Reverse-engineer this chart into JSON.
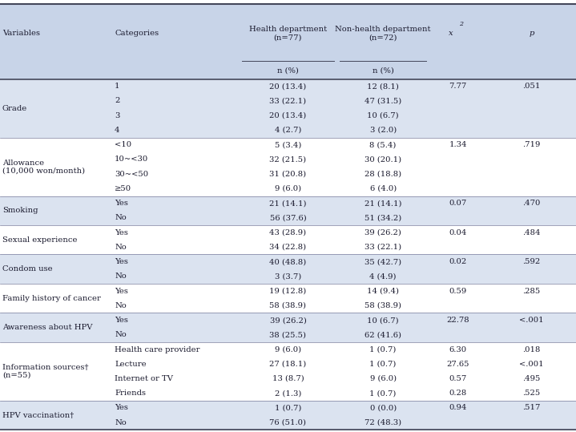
{
  "header_bg": "#c8d4e8",
  "row_bg_alt": "#dbe3f0",
  "row_bg_white": "#ffffff",
  "cols": [
    0.0,
    0.195,
    0.415,
    0.585,
    0.745,
    0.845,
    1.0
  ],
  "header1": [
    "Variables",
    "Categories",
    "Health department\n(n=77)",
    "Non-health department\n(n=72)",
    "x2",
    "p"
  ],
  "header2": [
    "",
    "",
    "n (%)",
    "n (%)",
    "",
    ""
  ],
  "rows": [
    {
      "variable": "Grade",
      "variable2": "",
      "categories": [
        "1",
        "2",
        "3",
        "4"
      ],
      "hd": [
        "20 (13.4)",
        "33 (22.1)",
        "20 (13.4)",
        "4 (2.7)"
      ],
      "nhd": [
        "12 (8.1)",
        "47 (31.5)",
        "10 (6.7)",
        "3 (2.0)"
      ],
      "chi2": [
        "7.77",
        "",
        "",
        ""
      ],
      "p": [
        ".051",
        "",
        "",
        ""
      ],
      "bg": "#dbe3f0"
    },
    {
      "variable": "Allowance",
      "variable2": "(10,000 won/month)",
      "categories": [
        "<10",
        "10~<30",
        "30~<50",
        "≥50"
      ],
      "hd": [
        "5 (3.4)",
        "32 (21.5)",
        "31 (20.8)",
        "9 (6.0)"
      ],
      "nhd": [
        "8 (5.4)",
        "30 (20.1)",
        "28 (18.8)",
        "6 (4.0)"
      ],
      "chi2": [
        "1.34",
        "",
        "",
        ""
      ],
      "p": [
        ".719",
        "",
        "",
        ""
      ],
      "bg": "#ffffff"
    },
    {
      "variable": "Smoking",
      "variable2": "",
      "categories": [
        "Yes",
        "No"
      ],
      "hd": [
        "21 (14.1)",
        "56 (37.6)"
      ],
      "nhd": [
        "21 (14.1)",
        "51 (34.2)"
      ],
      "chi2": [
        "0.07",
        ""
      ],
      "p": [
        ".470",
        ""
      ],
      "bg": "#dbe3f0"
    },
    {
      "variable": "Sexual experience",
      "variable2": "",
      "categories": [
        "Yes",
        "No"
      ],
      "hd": [
        "43 (28.9)",
        "34 (22.8)"
      ],
      "nhd": [
        "39 (26.2)",
        "33 (22.1)"
      ],
      "chi2": [
        "0.04",
        ""
      ],
      "p": [
        ".484",
        ""
      ],
      "bg": "#ffffff"
    },
    {
      "variable": "Condom use",
      "variable2": "",
      "categories": [
        "Yes",
        "No"
      ],
      "hd": [
        "40 (48.8)",
        "3 (3.7)"
      ],
      "nhd": [
        "35 (42.7)",
        "4 (4.9)"
      ],
      "chi2": [
        "0.02",
        ""
      ],
      "p": [
        ".592",
        ""
      ],
      "bg": "#dbe3f0"
    },
    {
      "variable": "Family history of cancer",
      "variable2": "",
      "categories": [
        "Yes",
        "No"
      ],
      "hd": [
        "19 (12.8)",
        "58 (38.9)"
      ],
      "nhd": [
        "14 (9.4)",
        "58 (38.9)"
      ],
      "chi2": [
        "0.59",
        ""
      ],
      "p": [
        ".285",
        ""
      ],
      "bg": "#ffffff"
    },
    {
      "variable": "Awareness about HPV",
      "variable2": "",
      "categories": [
        "Yes",
        "No"
      ],
      "hd": [
        "39 (26.2)",
        "38 (25.5)"
      ],
      "nhd": [
        "10 (6.7)",
        "62 (41.6)"
      ],
      "chi2": [
        "22.78",
        ""
      ],
      "p": [
        "<.001",
        ""
      ],
      "bg": "#dbe3f0"
    },
    {
      "variable": "Information sources†",
      "variable2": "(n=55)",
      "categories": [
        "Health care provider",
        "Lecture",
        "Internet or TV",
        "Friends"
      ],
      "hd": [
        "9 (6.0)",
        "27 (18.1)",
        "13 (8.7)",
        "2 (1.3)"
      ],
      "nhd": [
        "1 (0.7)",
        "1 (0.7)",
        "9 (6.0)",
        "1 (0.7)"
      ],
      "chi2": [
        "6.30",
        "27.65",
        "0.57",
        "0.28"
      ],
      "p": [
        ".018",
        "<.001",
        ".495",
        ".525"
      ],
      "bg": "#ffffff"
    },
    {
      "variable": "HPV vaccination†",
      "variable2": "",
      "categories": [
        "Yes",
        "No"
      ],
      "hd": [
        "1 (0.7)",
        "76 (51.0)"
      ],
      "nhd": [
        "0 (0.0)",
        "72 (48.3)"
      ],
      "chi2": [
        "0.94",
        ""
      ],
      "p": [
        ".517",
        ""
      ],
      "bg": "#dbe3f0"
    }
  ]
}
